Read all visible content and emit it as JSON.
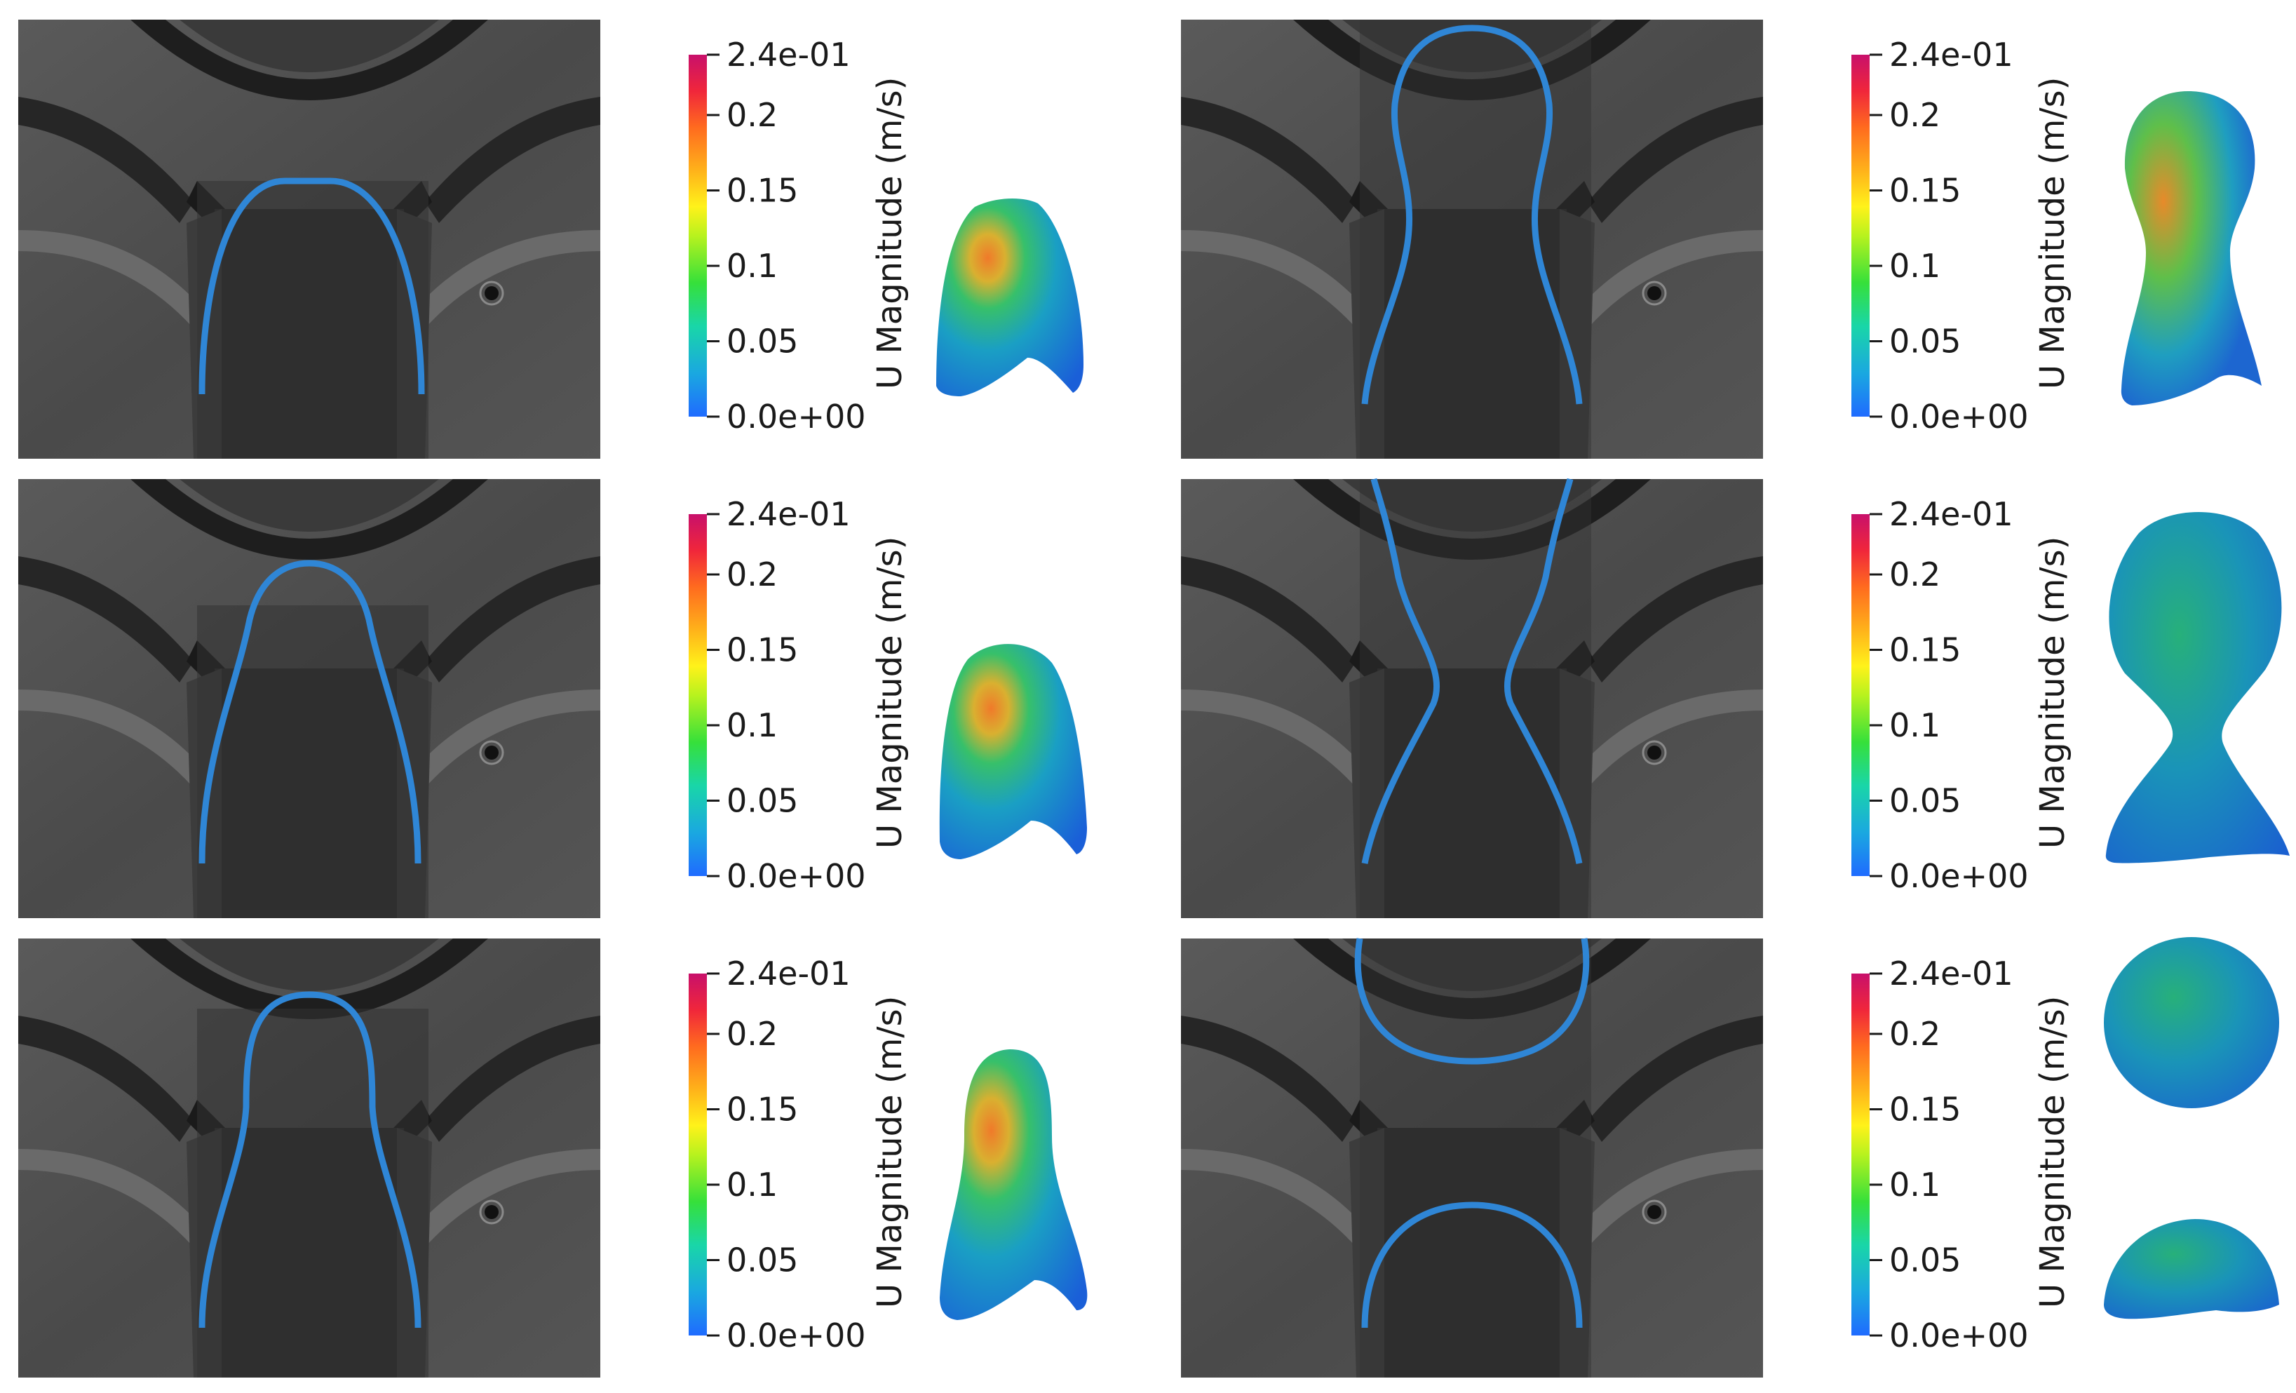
{
  "colorbar": {
    "title": "U  Magnitude (m/s)",
    "tick_labels": [
      "2.4e-01",
      "0.2",
      "0.15",
      "0.1",
      "0.05",
      "0.0e+00"
    ],
    "tick_values": [
      0.24,
      0.2,
      0.15,
      0.1,
      0.05,
      0.0
    ],
    "range": [
      0.0,
      0.24
    ],
    "colors": [
      "#1f6bff",
      "#1aa8e0",
      "#19d6a8",
      "#36e03a",
      "#b8f21e",
      "#fff21a",
      "#ffb21a",
      "#ff6a1f",
      "#f0263b",
      "#c8106b"
    ]
  },
  "contour_color": "#2f86d6",
  "panels": [
    {
      "id": "left-top",
      "stage": "bulge"
    },
    {
      "id": "left-middle",
      "stage": "finger"
    },
    {
      "id": "left-bottom",
      "stage": "bulb"
    },
    {
      "id": "right-top",
      "stage": "neck-forming"
    },
    {
      "id": "right-middle",
      "stage": "neck-thinning"
    },
    {
      "id": "right-bottom",
      "stage": "detached-droplet"
    }
  ]
}
